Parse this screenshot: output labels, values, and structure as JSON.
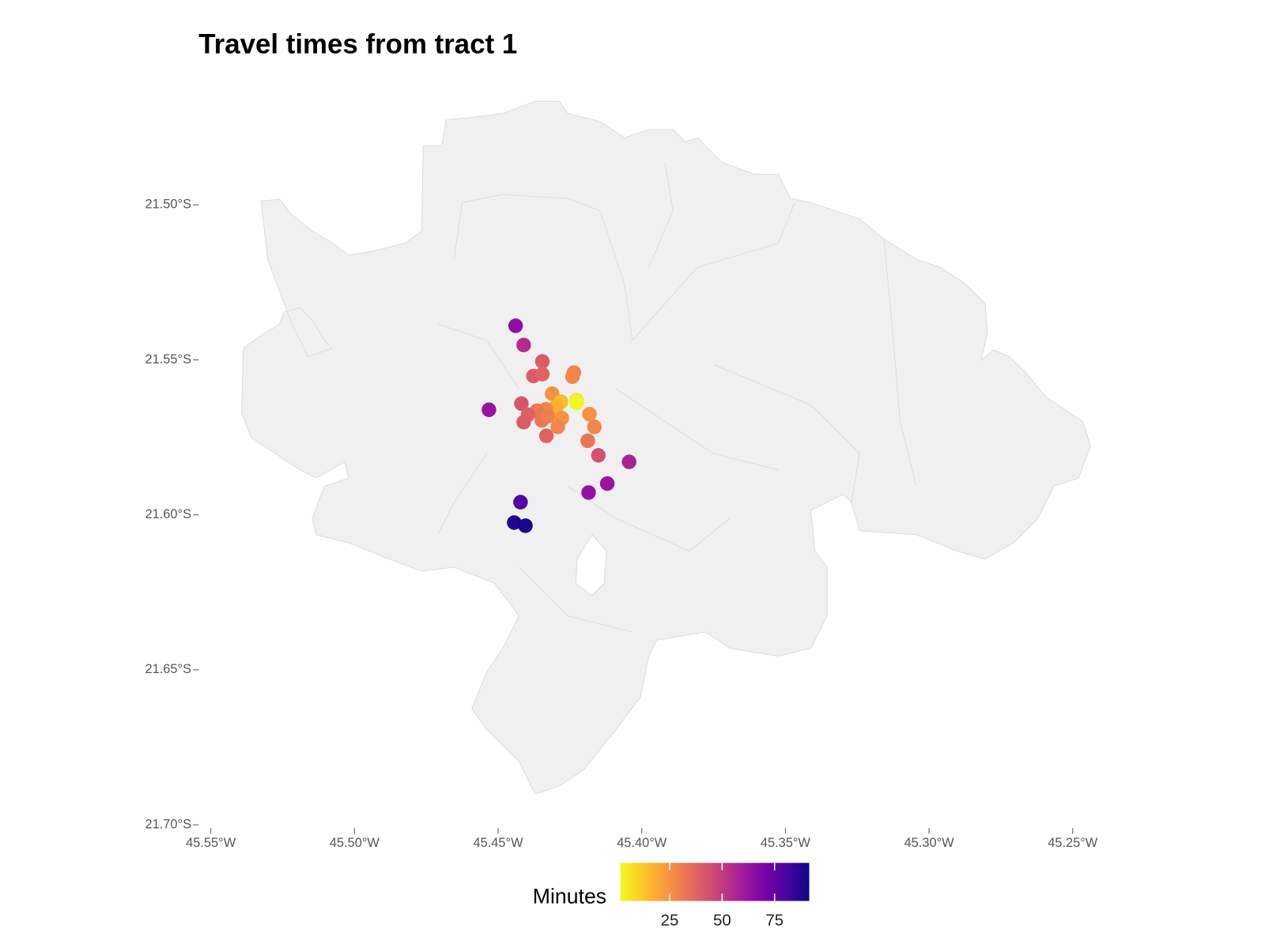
{
  "chart_data": {
    "type": "scatter",
    "title": "Travel times from tract 1",
    "x": [
      -45.4439,
      -45.4411,
      -45.4346,
      -45.4377,
      -45.4346,
      -45.4236,
      -45.4241,
      -45.4532,
      -45.4419,
      -45.4312,
      -45.4227,
      -45.4227,
      -45.4281,
      -45.4298,
      -45.4334,
      -45.4365,
      -45.4396,
      -45.4411,
      -45.4348,
      -45.4326,
      -45.4278,
      -45.4292,
      -45.4332,
      -45.4182,
      -45.4165,
      -45.4188,
      -45.4151,
      -45.4044,
      -45.412,
      -45.4185,
      -45.4422,
      -45.4444,
      -45.4405
    ],
    "y": [
      -21.539,
      -21.5452,
      -21.5505,
      -21.5552,
      -21.5546,
      -21.5541,
      -21.5554,
      -21.5661,
      -21.5641,
      -21.5609,
      -21.563,
      -21.5638,
      -21.5635,
      -21.5651,
      -21.5659,
      -21.5664,
      -21.5677,
      -21.5701,
      -21.5695,
      -21.5682,
      -21.5688,
      -21.5716,
      -21.5745,
      -21.5675,
      -21.5716,
      -21.5761,
      -21.5808,
      -21.5829,
      -21.5899,
      -21.5928,
      -21.5959,
      -21.6025,
      -21.6035
    ],
    "values": [
      65,
      55,
      40,
      40,
      38,
      28,
      28,
      63,
      42,
      25,
      5,
      2,
      15,
      18,
      28,
      32,
      38,
      40,
      32,
      30,
      25,
      28,
      38,
      25,
      28,
      33,
      43,
      58,
      62,
      64,
      78,
      88,
      90
    ],
    "xlim": [
      -45.555,
      -45.245
    ],
    "ylim": [
      -21.7,
      -21.465
    ],
    "xticks": [
      {
        "value": -45.55,
        "label": "45.55°W"
      },
      {
        "value": -45.5,
        "label": "45.50°W"
      },
      {
        "value": -45.45,
        "label": "45.45°W"
      },
      {
        "value": -45.4,
        "label": "45.40°W"
      },
      {
        "value": -45.35,
        "label": "45.35°W"
      },
      {
        "value": -45.3,
        "label": "45.30°W"
      },
      {
        "value": -45.25,
        "label": "45.25°W"
      }
    ],
    "yticks": [
      {
        "value": -21.5,
        "label": "21.50°S"
      },
      {
        "value": -21.55,
        "label": "21.55°S"
      },
      {
        "value": -21.6,
        "label": "21.60°S"
      },
      {
        "value": -21.65,
        "label": "21.65°S"
      },
      {
        "value": -21.7,
        "label": "21.70°S"
      }
    ],
    "colorbar_title": "Minutes",
    "colorlim": [
      1.5,
      91.5
    ],
    "colorbar_ticks": [
      25,
      50,
      75
    ],
    "colorscale": [
      "#f0f921",
      "#fdca26",
      "#fb9f3a",
      "#ed7953",
      "#d8576b",
      "#bd3786",
      "#9c179e",
      "#7201a8",
      "#46039f",
      "#0d0887"
    ]
  }
}
